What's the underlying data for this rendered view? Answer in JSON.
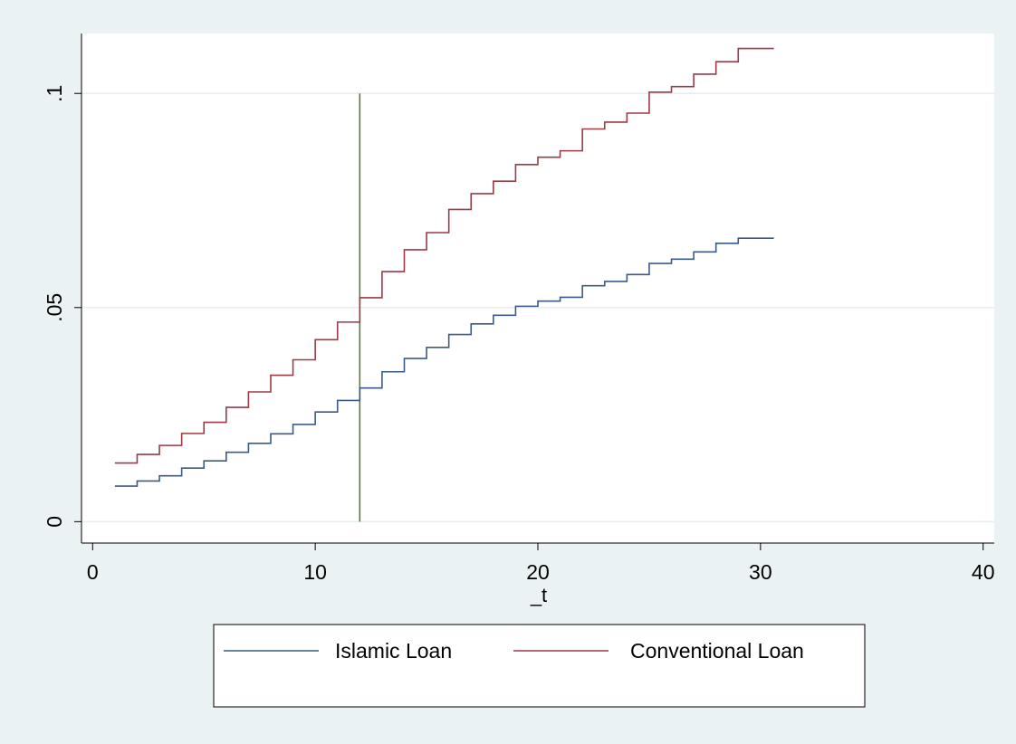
{
  "chart_data": {
    "type": "line",
    "step": true,
    "title": "",
    "xlabel": "_t",
    "ylabel": "",
    "xlim": [
      -0.5,
      40.5
    ],
    "ylim": [
      -0.005,
      0.114
    ],
    "x_ticks": [
      0,
      10,
      20,
      30,
      40
    ],
    "x_tick_labels": [
      "0",
      "10",
      "20",
      "30",
      "40"
    ],
    "y_ticks": [
      0,
      0.05,
      0.1
    ],
    "y_tick_labels": [
      "0",
      ".05",
      ".1"
    ],
    "grid": {
      "horizontal": true,
      "vertical": false
    },
    "legend_position": "bottom",
    "vertical_reference_line": {
      "x": 12,
      "y_from": 0,
      "y_to": 0.1,
      "color": "#5a7a3a"
    },
    "x_end": 30.6,
    "series": [
      {
        "name": "Islamic Loan",
        "color": "#3b5b86",
        "x": [
          1,
          2,
          3,
          4,
          5,
          6,
          7,
          8,
          9,
          10,
          11,
          12,
          13,
          14,
          15,
          16,
          17,
          18,
          19,
          20,
          21,
          22,
          23,
          24,
          25,
          26,
          27,
          28,
          29
        ],
        "values": [
          0.0083,
          0.0095,
          0.0107,
          0.0125,
          0.0142,
          0.0162,
          0.0183,
          0.0205,
          0.0227,
          0.0256,
          0.0283,
          0.0312,
          0.035,
          0.0381,
          0.0407,
          0.0437,
          0.0462,
          0.0482,
          0.0503,
          0.0515,
          0.0524,
          0.0551,
          0.0561,
          0.0577,
          0.0603,
          0.0613,
          0.063,
          0.065,
          0.0662
        ]
      },
      {
        "name": "Conventional Loan",
        "color": "#9c3a45",
        "x": [
          1,
          2,
          3,
          4,
          5,
          6,
          7,
          8,
          9,
          10,
          11,
          12,
          13,
          14,
          15,
          16,
          17,
          18,
          19,
          20,
          21,
          22,
          23,
          24,
          25,
          26,
          27,
          28,
          29
        ],
        "values": [
          0.0137,
          0.0157,
          0.0178,
          0.0206,
          0.0232,
          0.0267,
          0.0303,
          0.0342,
          0.0378,
          0.0425,
          0.0466,
          0.0523,
          0.0584,
          0.0635,
          0.0675,
          0.0729,
          0.0766,
          0.0795,
          0.0834,
          0.0851,
          0.0866,
          0.0917,
          0.0933,
          0.0954,
          0.1003,
          0.1016,
          0.1045,
          0.1074,
          0.1105
        ]
      }
    ]
  }
}
